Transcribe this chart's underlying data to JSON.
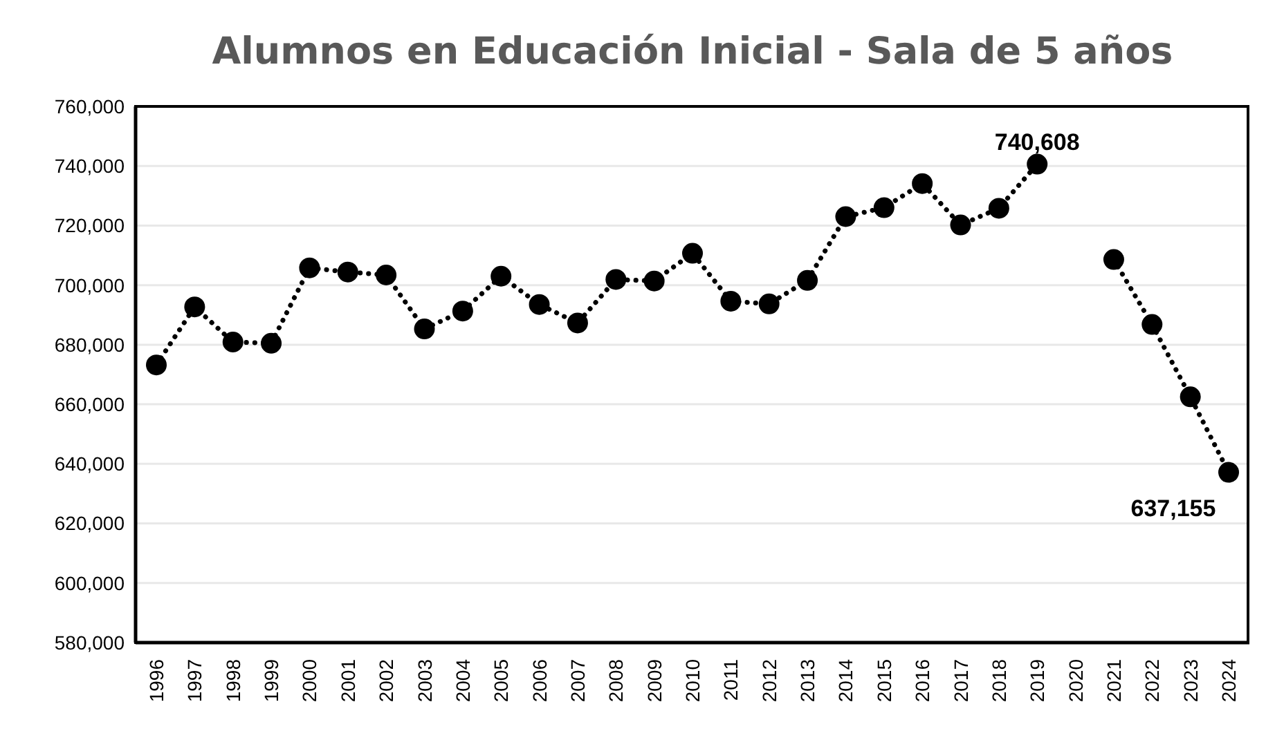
{
  "chart_data": {
    "type": "line",
    "title": "Alumnos en Educación Inicial - Sala de 5 años",
    "categories": [
      "1996",
      "1997",
      "1998",
      "1999",
      "2000",
      "2001",
      "2002",
      "2003",
      "2004",
      "2005",
      "2006",
      "2007",
      "2008",
      "2009",
      "2010",
      "2011",
      "2012",
      "2013",
      "2014",
      "2015",
      "2016",
      "2017",
      "2018",
      "2019",
      "2020",
      "2021",
      "2022",
      "2023",
      "2024"
    ],
    "series": [
      {
        "color": "#000000",
        "values": [
          673200,
          692700,
          680900,
          680500,
          705800,
          704400,
          703400,
          685300,
          691300,
          703000,
          693500,
          687300,
          701900,
          701400,
          710700,
          694600,
          693700,
          701600,
          723000,
          726000,
          734100,
          720200,
          725800,
          740608,
          null,
          708600,
          686800,
          662500,
          637155
        ],
        "value_labels": [
          null,
          null,
          null,
          null,
          null,
          null,
          null,
          null,
          null,
          null,
          null,
          null,
          null,
          null,
          null,
          null,
          null,
          null,
          null,
          null,
          null,
          null,
          null,
          "740,608",
          null,
          null,
          null,
          null,
          "637,155"
        ]
      }
    ],
    "ylim": [
      580000,
      760000
    ],
    "yticks": [
      {
        "value": 580000,
        "label": "580,000"
      },
      {
        "value": 600000,
        "label": "600,000"
      },
      {
        "value": 620000,
        "label": "620,000"
      },
      {
        "value": 640000,
        "label": "640,000"
      },
      {
        "value": 660000,
        "label": "660,000"
      },
      {
        "value": 680000,
        "label": "680,000"
      },
      {
        "value": 700000,
        "label": "700,000"
      },
      {
        "value": 720000,
        "label": "720,000"
      },
      {
        "value": 740000,
        "label": "740,000"
      },
      {
        "value": 760000,
        "label": "760,000"
      }
    ],
    "grid": "y",
    "legend": false,
    "marker": "circle",
    "line_style": "dotted"
  }
}
